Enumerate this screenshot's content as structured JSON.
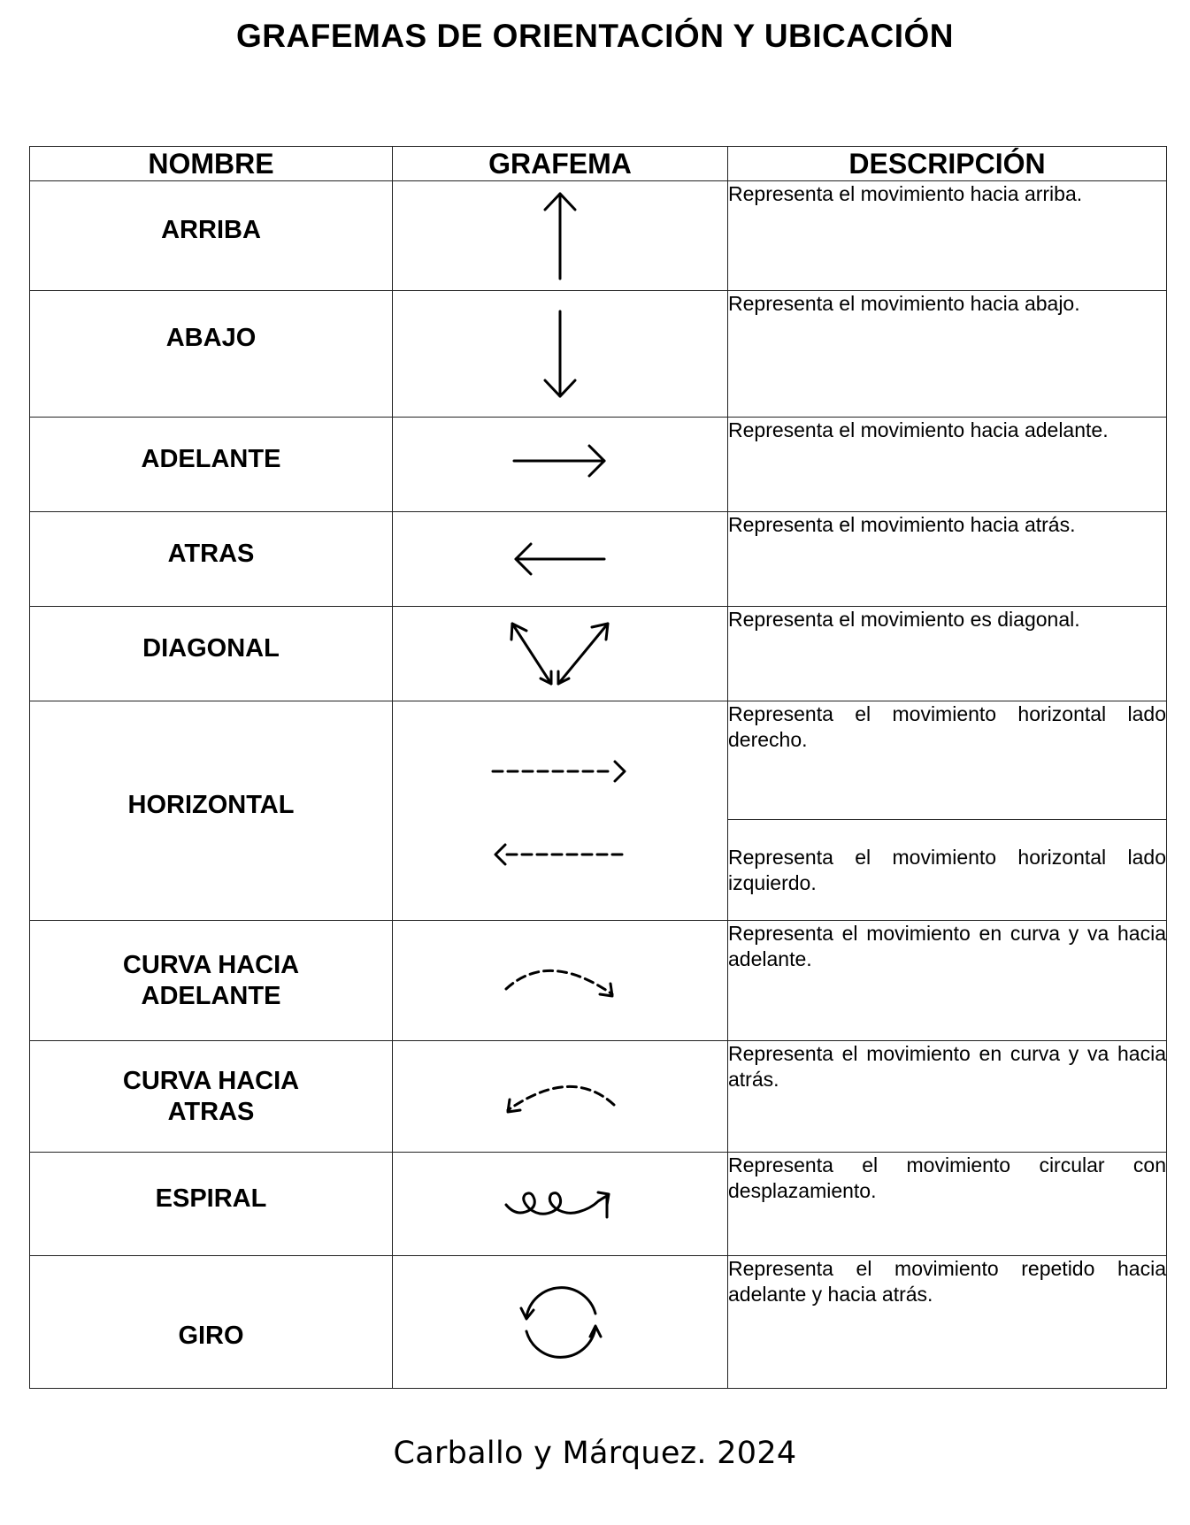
{
  "title": "GRAFEMAS DE ORIENTACIÓN Y UBICACIÓN",
  "columns": {
    "nombre": "NOMBRE",
    "grafema": "GRAFEMA",
    "descripcion": "DESCRIPCIÓN"
  },
  "rows": [
    {
      "name": "ARRIBA",
      "icon": "arrow-up-icon",
      "description": "Representa el movimiento hacia arriba."
    },
    {
      "name": "ABAJO",
      "icon": "arrow-down-icon",
      "description": "Representa el movimiento hacia abajo."
    },
    {
      "name": "ADELANTE",
      "icon": "arrow-right-icon",
      "description": "Representa el movimiento hacia adelante."
    },
    {
      "name": "ATRAS",
      "icon": "arrow-left-icon",
      "description": "Representa el movimiento hacia atrás."
    },
    {
      "name": "DIAGONAL",
      "icon": "diagonal-arrows-icon",
      "description": "Representa el movimiento es diagonal."
    },
    {
      "name": "HORIZONTAL",
      "icon": "dashed-arrows-icon",
      "description_right": "Representa el movimiento horizontal lado derecho.",
      "description_left": "Representa el movimiento horizontal lado izquierdo."
    },
    {
      "name_line1": "CURVA HACIA",
      "name_line2": "ADELANTE",
      "icon": "dashed-curve-forward-icon",
      "description": "Representa el movimiento en curva y va hacia adelante."
    },
    {
      "name_line1": "CURVA HACIA",
      "name_line2": "ATRAS",
      "icon": "dashed-curve-backward-icon",
      "description": "Representa el movimiento en curva y va hacia atrás."
    },
    {
      "name": "ESPIRAL",
      "icon": "spiral-arrow-icon",
      "description": "Representa el movimiento circular con desplazamiento."
    },
    {
      "name": "GIRO",
      "icon": "rotation-arrows-icon",
      "description": "Representa el movimiento repetido hacia adelante y hacia atrás."
    }
  ],
  "footer": "Carballo y Márquez. 2024"
}
